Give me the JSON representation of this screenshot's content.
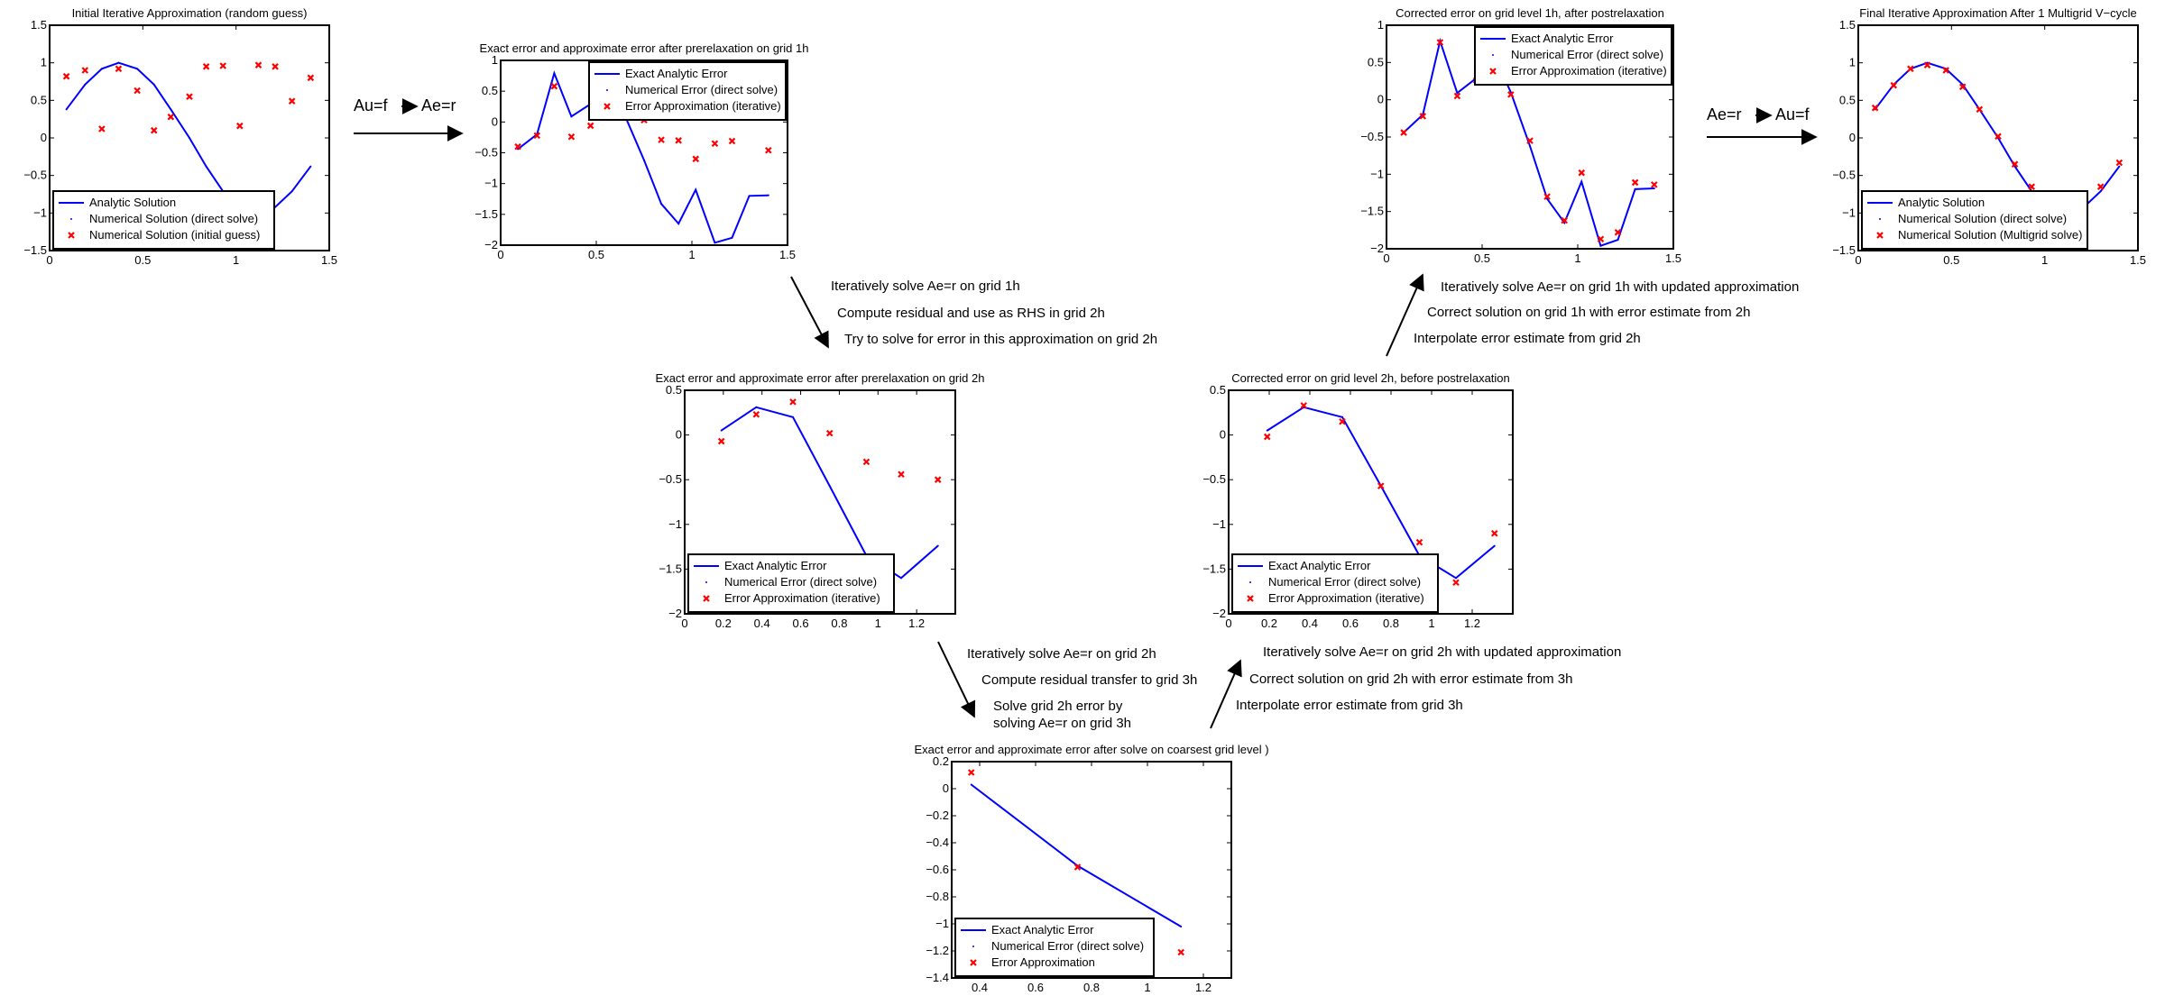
{
  "colors": {
    "analytic": "#0000ff",
    "numerical": "#0000ff",
    "approx": "#ff0000",
    "axis": "#000000",
    "text": "#000000"
  },
  "equations": {
    "top_left": [
      "Au=f",
      "Ae=r"
    ],
    "top_right": [
      "Ae=r",
      "Au=f"
    ]
  },
  "annotations": {
    "descend_1h_to_2h": [
      "Iteratively solve Ae=r on grid 1h",
      "Compute residual and use as RHS in grid 2h",
      "Try to solve for error in this approximation on grid 2h"
    ],
    "descend_2h_to_3h": [
      "Iteratively solve Ae=r on grid 2h",
      "Compute residual transfer to grid 3h",
      "Solve grid 2h error by",
      "solving Ae=r on grid 3h"
    ],
    "ascend_3h_to_2h": [
      "Iteratively solve Ae=r on grid 2h with updated approximation",
      "Correct solution on grid 2h with error estimate from 3h",
      "Interpolate error estimate from grid 3h"
    ],
    "ascend_2h_to_1h": [
      "Iteratively solve Ae=r on grid 1h with updated approximation",
      "Correct solution on grid 1h with error estimate from 2h",
      "Interpolate error estimate from grid 2h"
    ]
  },
  "chart_data": [
    {
      "id": "initial",
      "type": "line",
      "title": "Initial Iterative Approximation (random guess)",
      "xlim": [
        0,
        1.5
      ],
      "ylim": [
        -1.5,
        1.5
      ],
      "xticks": [
        0,
        0.5,
        1,
        1.5
      ],
      "xtick_labels": [
        "0",
        "0.5",
        "1",
        "1.5"
      ],
      "yticks": [
        -1.5,
        -1,
        -0.5,
        0,
        0.5,
        1,
        1.5
      ],
      "ytick_labels": [
        "−1.5",
        "−1",
        "−0.5",
        "0",
        "0.5",
        "1",
        "1.5"
      ],
      "legend": {
        "position": "bottom-left",
        "entries": [
          "Analytic Solution",
          "Numerical Solution (direct solve)",
          "Numerical Solution (initial guess)"
        ]
      },
      "series": [
        {
          "name": "Analytic Solution",
          "style": "line",
          "x": [
            0.09,
            0.19,
            0.28,
            0.37,
            0.47,
            0.56,
            0.65,
            0.75,
            0.84,
            0.93,
            1.02,
            1.12,
            1.21,
            1.3,
            1.4
          ],
          "y": [
            0.38,
            0.71,
            0.92,
            1.0,
            0.92,
            0.71,
            0.38,
            0.0,
            -0.38,
            -0.71,
            -0.92,
            -1.0,
            -0.92,
            -0.71,
            -0.38
          ]
        },
        {
          "name": "Numerical Solution (direct solve)",
          "style": "dot",
          "x": [
            0.09,
            0.19,
            0.28,
            0.37,
            0.47,
            0.56,
            0.65,
            0.75,
            0.84,
            0.93,
            1.02,
            1.12,
            1.21,
            1.3,
            1.4
          ],
          "y": [
            0.38,
            0.71,
            0.92,
            1.0,
            0.92,
            0.71,
            0.38,
            0.0,
            -0.38,
            -0.71,
            -0.92,
            -1.0,
            -0.92,
            -0.71,
            -0.38
          ]
        },
        {
          "name": "Numerical Solution (initial guess)",
          "style": "x",
          "x": [
            0.09,
            0.19,
            0.28,
            0.37,
            0.47,
            0.56,
            0.65,
            0.75,
            0.84,
            0.93,
            1.02,
            1.12,
            1.21,
            1.3,
            1.4
          ],
          "y": [
            0.82,
            0.9,
            0.12,
            0.92,
            0.63,
            0.1,
            0.28,
            0.55,
            0.95,
            0.96,
            0.16,
            0.97,
            0.95,
            0.49,
            0.8
          ]
        }
      ]
    },
    {
      "id": "prerelax_1h",
      "type": "line",
      "title": "Exact error and approximate error after prerelaxation on grid 1h",
      "xlim": [
        0,
        1.5
      ],
      "ylim": [
        -2,
        1
      ],
      "xticks": [
        0,
        0.5,
        1,
        1.5
      ],
      "xtick_labels": [
        "0",
        "0.5",
        "1",
        "1.5"
      ],
      "yticks": [
        -2,
        -1.5,
        -1,
        -0.5,
        0,
        0.5,
        1
      ],
      "ytick_labels": [
        "−2",
        "−1.5",
        "−1",
        "−0.5",
        "0",
        "0.5",
        "1"
      ],
      "legend": {
        "position": "top-right",
        "entries": [
          "Exact Analytic Error",
          "Numerical Error (direct solve)",
          "Error Approximation (iterative)"
        ]
      },
      "series": [
        {
          "name": "Exact Analytic Error",
          "style": "line",
          "x": [
            0.09,
            0.19,
            0.28,
            0.37,
            0.47,
            0.56,
            0.65,
            0.75,
            0.84,
            0.93,
            1.02,
            1.12,
            1.21,
            1.3,
            1.4
          ],
          "y": [
            -0.44,
            -0.2,
            0.79,
            0.09,
            0.29,
            0.61,
            0.1,
            -0.62,
            -1.33,
            -1.65,
            -1.1,
            -1.96,
            -1.88,
            -1.2,
            -1.19
          ]
        },
        {
          "name": "Numerical Error (direct solve)",
          "style": "dot",
          "x": [
            0.09,
            0.19,
            0.28,
            0.37,
            0.47,
            0.56,
            0.65,
            0.75,
            0.84,
            0.93,
            1.02,
            1.12,
            1.21,
            1.3,
            1.4
          ],
          "y": [
            -0.44,
            -0.2,
            0.79,
            0.09,
            0.29,
            0.61,
            0.1,
            -0.62,
            -1.33,
            -1.65,
            -1.1,
            -1.96,
            -1.88,
            -1.2,
            -1.19
          ]
        },
        {
          "name": "Error Approximation (iterative)",
          "style": "x",
          "x": [
            0.09,
            0.19,
            0.28,
            0.37,
            0.47,
            0.56,
            0.65,
            0.75,
            0.84,
            0.93,
            1.02,
            1.12,
            1.21,
            1.3,
            1.4
          ],
          "y": [
            -0.4,
            -0.22,
            0.58,
            -0.24,
            -0.06,
            0.34,
            0.16,
            0.03,
            -0.29,
            -0.3,
            -0.6,
            -0.35,
            -0.31,
            0.1,
            -0.46
          ]
        }
      ]
    },
    {
      "id": "prerelax_2h",
      "type": "line",
      "title": "Exact error and approximate error after prerelaxation on grid 2h",
      "xlim": [
        0,
        1.4
      ],
      "ylim": [
        -2,
        0.5
      ],
      "xticks": [
        0,
        0.2,
        0.4,
        0.6,
        0.8,
        1,
        1.2
      ],
      "xtick_labels": [
        "0",
        "0.2",
        "0.4",
        "0.6",
        "0.8",
        "1",
        "1.2"
      ],
      "yticks": [
        -2,
        -1.5,
        -1,
        -0.5,
        0,
        0.5
      ],
      "ytick_labels": [
        "−2",
        "−1.5",
        "−1",
        "−0.5",
        "0",
        "0.5"
      ],
      "legend": {
        "position": "bottom-left",
        "entries": [
          "Exact Analytic Error",
          "Numerical Error (direct solve)",
          "Error Approximation (iterative)"
        ]
      },
      "series": [
        {
          "name": "Exact Analytic Error",
          "style": "line",
          "x": [
            0.19,
            0.37,
            0.56,
            0.75,
            0.94,
            1.12,
            1.31
          ],
          "y": [
            0.05,
            0.31,
            0.2,
            -0.57,
            -1.35,
            -1.6,
            -1.24
          ]
        },
        {
          "name": "Numerical Error (direct solve)",
          "style": "dot",
          "x": [
            0.19,
            0.37,
            0.56,
            0.75,
            0.94,
            1.12,
            1.31
          ],
          "y": [
            0.05,
            0.31,
            0.2,
            -0.57,
            -1.35,
            -1.6,
            -1.24
          ]
        },
        {
          "name": "Error Approximation (iterative)",
          "style": "x",
          "x": [
            0.19,
            0.37,
            0.56,
            0.75,
            0.94,
            1.12,
            1.31
          ],
          "y": [
            -0.07,
            0.23,
            0.37,
            0.02,
            -0.3,
            -0.44,
            -0.5
          ]
        }
      ]
    },
    {
      "id": "coarsest",
      "type": "line",
      "title": "Exact error and approximate error after solve on coarsest grid level  )",
      "xlim": [
        0.3,
        1.3
      ],
      "ylim": [
        -1.4,
        0.2
      ],
      "xticks": [
        0.4,
        0.6,
        0.8,
        1,
        1.2
      ],
      "xtick_labels": [
        "0.4",
        "0.6",
        "0.8",
        "1",
        "1.2"
      ],
      "yticks": [
        -1.4,
        -1.2,
        -1,
        -0.8,
        -0.6,
        -0.4,
        -0.2,
        0,
        0.2
      ],
      "ytick_labels": [
        "−1.4",
        "−1.2",
        "−1",
        "−0.8",
        "−0.6",
        "−0.4",
        "−0.2",
        "0",
        "0.2"
      ],
      "legend": {
        "position": "bottom-left",
        "entries": [
          "Exact Analytic Error",
          "Numerical Error (direct solve)",
          "Error Approximation"
        ]
      },
      "series": [
        {
          "name": "Exact Analytic Error",
          "style": "line",
          "x": [
            0.37,
            0.75,
            1.12
          ],
          "y": [
            0.03,
            -0.57,
            -1.02
          ]
        },
        {
          "name": "Numerical Error (direct solve)",
          "style": "dot",
          "x": [
            0.37,
            0.75,
            1.12
          ],
          "y": [
            0.03,
            -0.57,
            -1.02
          ]
        },
        {
          "name": "Error Approximation",
          "style": "x",
          "x": [
            0.37,
            0.75,
            1.12
          ],
          "y": [
            0.12,
            -0.58,
            -1.21
          ]
        }
      ]
    },
    {
      "id": "corrected_2h",
      "type": "line",
      "title": "Corrected error on grid level 2h, before postrelaxation",
      "xlim": [
        0,
        1.4
      ],
      "ylim": [
        -2,
        0.5
      ],
      "xticks": [
        0,
        0.2,
        0.4,
        0.6,
        0.8,
        1,
        1.2
      ],
      "xtick_labels": [
        "0",
        "0.2",
        "0.4",
        "0.6",
        "0.8",
        "1",
        "1.2"
      ],
      "yticks": [
        -2,
        -1.5,
        -1,
        -0.5,
        0,
        0.5
      ],
      "ytick_labels": [
        "−2",
        "−1.5",
        "−1",
        "−0.5",
        "0",
        "0.5"
      ],
      "legend": {
        "position": "bottom-left",
        "entries": [
          "Exact Analytic Error",
          "Numerical Error (direct solve)",
          "Error Approximation (iterative)"
        ]
      },
      "series": [
        {
          "name": "Exact Analytic Error",
          "style": "line",
          "x": [
            0.19,
            0.37,
            0.56,
            0.75,
            0.94,
            1.12,
            1.31
          ],
          "y": [
            0.05,
            0.31,
            0.2,
            -0.57,
            -1.35,
            -1.6,
            -1.24
          ]
        },
        {
          "name": "Numerical Error (direct solve)",
          "style": "dot",
          "x": [
            0.19,
            0.37,
            0.56,
            0.75,
            0.94,
            1.12,
            1.31
          ],
          "y": [
            0.05,
            0.31,
            0.2,
            -0.57,
            -1.35,
            -1.6,
            -1.24
          ]
        },
        {
          "name": "Error Approximation (iterative)",
          "style": "x",
          "x": [
            0.19,
            0.37,
            0.56,
            0.75,
            0.94,
            1.12,
            1.31
          ],
          "y": [
            -0.02,
            0.33,
            0.15,
            -0.57,
            -1.2,
            -1.65,
            -1.1
          ]
        }
      ]
    },
    {
      "id": "corrected_1h",
      "type": "line",
      "title": "Corrected error on grid level 1h, after postrelaxation",
      "xlim": [
        0,
        1.5
      ],
      "ylim": [
        -2,
        1
      ],
      "xticks": [
        0,
        0.5,
        1,
        1.5
      ],
      "xtick_labels": [
        "0",
        "0.5",
        "1",
        "1.5"
      ],
      "yticks": [
        -2,
        -1.5,
        -1,
        -0.5,
        0,
        0.5,
        1
      ],
      "ytick_labels": [
        "−2",
        "−1.5",
        "−1",
        "−0.5",
        "0",
        "0.5",
        "1"
      ],
      "legend": {
        "position": "top-right",
        "entries": [
          "Exact Analytic Error",
          "Numerical Error (direct solve)",
          "Error Approximation (iterative)"
        ]
      },
      "series": [
        {
          "name": "Exact Analytic Error",
          "style": "line",
          "x": [
            0.09,
            0.19,
            0.28,
            0.37,
            0.47,
            0.56,
            0.65,
            0.75,
            0.84,
            0.93,
            1.02,
            1.12,
            1.21,
            1.3,
            1.4
          ],
          "y": [
            -0.44,
            -0.2,
            0.79,
            0.09,
            0.29,
            0.61,
            0.1,
            -0.62,
            -1.33,
            -1.65,
            -1.1,
            -1.96,
            -1.88,
            -1.2,
            -1.19
          ]
        },
        {
          "name": "Numerical Error (direct solve)",
          "style": "dot",
          "x": [
            0.09,
            0.19,
            0.28,
            0.37,
            0.47,
            0.56,
            0.65,
            0.75,
            0.84,
            0.93,
            1.02,
            1.12,
            1.21,
            1.3,
            1.4
          ],
          "y": [
            -0.44,
            -0.2,
            0.79,
            0.09,
            0.29,
            0.61,
            0.1,
            -0.62,
            -1.33,
            -1.65,
            -1.1,
            -1.96,
            -1.88,
            -1.2,
            -1.19
          ]
        },
        {
          "name": "Error Approximation (iterative)",
          "style": "x",
          "x": [
            0.09,
            0.19,
            0.28,
            0.37,
            0.47,
            0.56,
            0.65,
            0.75,
            0.84,
            0.93,
            1.02,
            1.12,
            1.21,
            1.3,
            1.4
          ],
          "y": [
            -0.44,
            -0.22,
            0.77,
            0.05,
            0.26,
            0.57,
            0.07,
            -0.55,
            -1.3,
            -1.62,
            -0.98,
            -1.87,
            -1.78,
            -1.11,
            -1.14
          ]
        }
      ]
    },
    {
      "id": "final",
      "type": "line",
      "title": "Final Iterative Approximation After 1 Multigrid V−cycle",
      "xlim": [
        0,
        1.5
      ],
      "ylim": [
        -1.5,
        1.5
      ],
      "xticks": [
        0,
        0.5,
        1,
        1.5
      ],
      "xtick_labels": [
        "0",
        "0.5",
        "1",
        "1.5"
      ],
      "yticks": [
        -1.5,
        -1,
        -0.5,
        0,
        0.5,
        1,
        1.5
      ],
      "ytick_labels": [
        "−1.5",
        "−1",
        "−0.5",
        "0",
        "0.5",
        "1",
        "1.5"
      ],
      "legend": {
        "position": "bottom-left",
        "entries": [
          "Analytic Solution",
          "Numerical Solution (direct solve)",
          "Numerical Solution (Multigrid solve)"
        ]
      },
      "series": [
        {
          "name": "Analytic Solution",
          "style": "line",
          "x": [
            0.09,
            0.19,
            0.28,
            0.37,
            0.47,
            0.56,
            0.65,
            0.75,
            0.84,
            0.93,
            1.02,
            1.12,
            1.21,
            1.3,
            1.4
          ],
          "y": [
            0.38,
            0.71,
            0.92,
            1.0,
            0.92,
            0.71,
            0.38,
            0.0,
            -0.38,
            -0.71,
            -0.92,
            -1.0,
            -0.92,
            -0.71,
            -0.38
          ]
        },
        {
          "name": "Numerical Solution (direct solve)",
          "style": "dot",
          "x": [
            0.09,
            0.19,
            0.28,
            0.37,
            0.47,
            0.56,
            0.65,
            0.75,
            0.84,
            0.93,
            1.02,
            1.12,
            1.21,
            1.3,
            1.4
          ],
          "y": [
            0.38,
            0.71,
            0.92,
            1.0,
            0.92,
            0.71,
            0.38,
            0.0,
            -0.38,
            -0.71,
            -0.92,
            -1.0,
            -0.92,
            -0.71,
            -0.38
          ]
        },
        {
          "name": "Numerical Solution (Multigrid solve)",
          "style": "x",
          "x": [
            0.09,
            0.19,
            0.28,
            0.37,
            0.47,
            0.56,
            0.65,
            0.75,
            0.84,
            0.93,
            1.02,
            1.12,
            1.21,
            1.3,
            1.4
          ],
          "y": [
            0.4,
            0.7,
            0.92,
            0.97,
            0.9,
            0.68,
            0.38,
            0.02,
            -0.35,
            -0.65,
            -0.9,
            -0.95,
            -0.88,
            -0.65,
            -0.33
          ]
        }
      ]
    }
  ]
}
